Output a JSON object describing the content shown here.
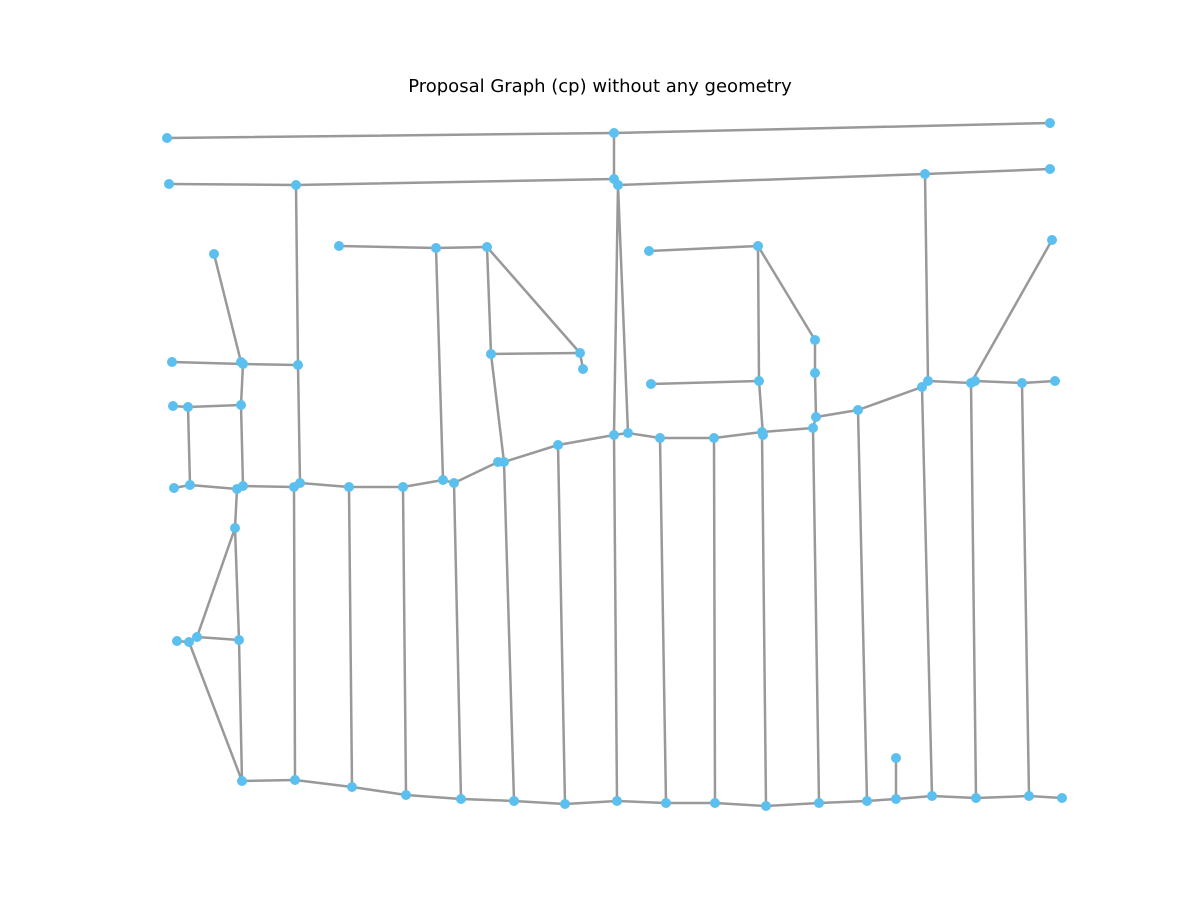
{
  "title": "Proposal Graph (cp) without any geometry",
  "colors": {
    "edge": "#999999",
    "node": "#5bc0f0"
  }
}
